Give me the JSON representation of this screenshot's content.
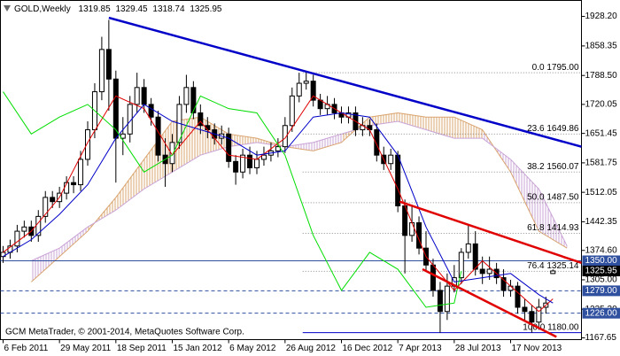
{
  "chart_data": {
    "type": "candlestick",
    "symbol": "GOLD,Weekly",
    "copyright": "GCM MetaTrader, © 2001-2014, MetaQuotes Software Corp.",
    "up_color": "#ffffff",
    "down_color": "#000000",
    "xlim": [
      -0.75,
      164.1
    ],
    "ylim": [
      1163.5,
      1966
    ],
    "xticks": [
      {
        "value": 0,
        "label": "6 Feb 2011"
      },
      {
        "value": 16,
        "label": "29 May 2011"
      },
      {
        "value": 32,
        "label": "18 Sep 2011"
      },
      {
        "value": 48,
        "label": "15 Jan 2012"
      },
      {
        "value": 64,
        "label": "6 May 2012"
      },
      {
        "value": 80,
        "label": "26 Aug 2012"
      },
      {
        "value": 96,
        "label": "16 Dec 2012"
      },
      {
        "value": 112,
        "label": "7 Apr 2013"
      },
      {
        "value": 128,
        "label": "28 Jul 2013"
      },
      {
        "value": 144,
        "label": "17 Nov 2013"
      }
    ],
    "yticks": [
      {
        "value": 1928.2,
        "label": "1928.20"
      },
      1858.35,
      {
        "value": 1788.5,
        "label": "1788.50"
      },
      1720.05,
      1651.45,
      1581.75,
      1512.05,
      1442.35,
      {
        "value": 1374.6,
        "label": "1374.60"
      },
      {
        "value": 1305,
        "label": "1305.00"
      },
      {
        "value": 1235.3,
        "label": "1235.30"
      },
      1167.65
    ],
    "x": [
      0,
      2,
      4,
      6,
      8,
      10,
      12,
      14,
      16,
      18,
      20,
      22,
      24,
      26,
      28,
      30,
      32,
      34,
      36,
      38,
      40,
      42,
      44,
      46,
      48,
      50,
      52,
      54,
      56,
      58,
      60,
      62,
      64,
      66,
      68,
      70,
      72,
      74,
      76,
      78,
      80,
      82,
      84,
      86,
      88,
      90,
      92,
      94,
      96,
      98,
      100,
      102,
      104,
      106,
      108,
      110,
      112,
      114,
      116,
      118,
      120,
      122,
      124,
      126,
      128,
      130,
      132,
      134,
      136,
      138,
      140,
      142,
      144,
      146,
      148,
      150,
      152,
      154,
      156
    ],
    "open": [
      1360,
      1370,
      1385,
      1420,
      1430,
      1410,
      1455,
      1500,
      1490,
      1510,
      1535,
      1530,
      1590,
      1660,
      1750,
      1850,
      1780,
      1640,
      1650,
      1720,
      1760,
      1720,
      1690,
      1600,
      1580,
      1630,
      1720,
      1760,
      1700,
      1670,
      1660,
      1640,
      1650,
      1585,
      1560,
      1600,
      1570,
      1590,
      1600,
      1610,
      1620,
      1670,
      1740,
      1770,
      1775,
      1730,
      1710,
      1720,
      1700,
      1690,
      1700,
      1660,
      1670,
      1660,
      1600,
      1580,
      1600,
      1480,
      1410,
      1440,
      1380,
      1340,
      1280,
      1230,
      1290,
      1310,
      1370,
      1390,
      1330,
      1320,
      1330,
      1310,
      1280,
      1290,
      1240,
      1230,
      1205,
      1240,
      1319.85
    ],
    "high": [
      1385,
      1400,
      1435,
      1445,
      1445,
      1470,
      1515,
      1515,
      1525,
      1550,
      1550,
      1610,
      1680,
      1770,
      1880,
      1920,
      1800,
      1690,
      1740,
      1795,
      1780,
      1735,
      1705,
      1640,
      1650,
      1740,
      1790,
      1775,
      1720,
      1690,
      1675,
      1670,
      1665,
      1600,
      1615,
      1620,
      1610,
      1620,
      1630,
      1640,
      1690,
      1760,
      1795,
      1795,
      1790,
      1745,
      1740,
      1735,
      1715,
      1715,
      1715,
      1690,
      1685,
      1675,
      1620,
      1615,
      1610,
      1495,
      1480,
      1455,
      1420,
      1355,
      1300,
      1320,
      1340,
      1380,
      1433,
      1420,
      1360,
      1360,
      1345,
      1330,
      1305,
      1300,
      1260,
      1245,
      1260,
      1265,
      1329.45
    ],
    "low": [
      1345,
      1355,
      1370,
      1405,
      1395,
      1395,
      1440,
      1475,
      1475,
      1495,
      1510,
      1515,
      1575,
      1640,
      1730,
      1705,
      1535,
      1600,
      1630,
      1700,
      1700,
      1670,
      1585,
      1525,
      1560,
      1615,
      1700,
      1685,
      1650,
      1640,
      1625,
      1625,
      1570,
      1530,
      1545,
      1555,
      1555,
      1575,
      1585,
      1595,
      1605,
      1655,
      1725,
      1755,
      1715,
      1695,
      1695,
      1685,
      1675,
      1675,
      1645,
      1645,
      1645,
      1585,
      1565,
      1565,
      1465,
      1320,
      1395,
      1365,
      1325,
      1265,
      1180,
      1210,
      1275,
      1295,
      1355,
      1315,
      1295,
      1305,
      1295,
      1265,
      1265,
      1225,
      1210,
      1180,
      1190,
      1225,
      1318.74
    ],
    "close": [
      1370,
      1385,
      1420,
      1430,
      1410,
      1455,
      1500,
      1490,
      1510,
      1535,
      1530,
      1590,
      1660,
      1750,
      1850,
      1780,
      1640,
      1650,
      1720,
      1760,
      1720,
      1690,
      1600,
      1580,
      1630,
      1720,
      1760,
      1700,
      1670,
      1660,
      1640,
      1650,
      1585,
      1560,
      1600,
      1570,
      1590,
      1600,
      1610,
      1620,
      1670,
      1740,
      1770,
      1775,
      1730,
      1710,
      1720,
      1700,
      1690,
      1700,
      1660,
      1670,
      1660,
      1600,
      1580,
      1600,
      1480,
      1410,
      1440,
      1380,
      1340,
      1280,
      1230,
      1290,
      1310,
      1370,
      1390,
      1330,
      1320,
      1330,
      1310,
      1280,
      1290,
      1240,
      1230,
      1205,
      1240,
      1250,
      1325.95
    ],
    "lines": [
      {
        "color": "#e00000",
        "x": [
          0,
          8,
          16,
          24,
          32,
          40,
          48,
          56,
          64,
          72,
          80,
          88,
          96,
          104,
          112,
          120,
          128,
          136,
          144,
          152,
          156
        ],
        "values": [
          1370,
          1420,
          1500,
          1630,
          1740,
          1710,
          1600,
          1680,
          1600,
          1590,
          1640,
          1740,
          1700,
          1660,
          1520,
          1360,
          1280,
          1350,
          1290,
          1230,
          1260
        ]
      },
      {
        "color": "#0000c8",
        "x": [
          0,
          8,
          16,
          24,
          32,
          40,
          48,
          56,
          64,
          72,
          80,
          88,
          96,
          104,
          112,
          120,
          128,
          136,
          144,
          152,
          156
        ],
        "values": [
          1360,
          1400,
          1460,
          1530,
          1640,
          1720,
          1680,
          1660,
          1640,
          1600,
          1610,
          1690,
          1700,
          1690,
          1600,
          1430,
          1300,
          1310,
          1320,
          1270,
          1250
        ]
      },
      {
        "color": "#00dd00",
        "x": [
          0,
          8,
          16,
          24,
          32,
          40,
          48,
          56,
          64,
          72,
          80,
          88,
          96,
          104,
          112,
          120,
          128,
          130
        ],
        "values": [
          1750,
          1650,
          1690,
          1720,
          1660,
          1560,
          1600,
          1740,
          1710,
          1700,
          1600,
          1410,
          1280,
          1370,
          1330,
          1240,
          1250,
          1325.95
        ]
      }
    ],
    "cloud": {
      "up_color": "#d9a46e",
      "down_color": "#c9a3d6",
      "x": [
        8,
        16,
        24,
        32,
        40,
        48,
        56,
        64,
        72,
        80,
        88,
        96,
        104,
        112,
        120,
        128,
        136,
        144,
        152,
        160
      ],
      "span_a": [
        1300,
        1360,
        1420,
        1500,
        1590,
        1680,
        1690,
        1650,
        1640,
        1620,
        1610,
        1630,
        1690,
        1700,
        1690,
        1690,
        1660,
        1560,
        1420,
        1380
      ],
      "span_b": [
        1350,
        1380,
        1430,
        1470,
        1520,
        1560,
        1600,
        1620,
        1630,
        1620,
        1630,
        1650,
        1670,
        1680,
        1660,
        1640,
        1640,
        1590,
        1520,
        1385
      ]
    },
    "trendlines": [
      {
        "color": "#0000c8",
        "x": [
          30,
          164.1
        ],
        "values": [
          1925,
          1620
        ]
      },
      {
        "color": "#e00000",
        "x": [
          112.5,
          164.1
        ],
        "values": [
          1490,
          1345
        ]
      },
      {
        "color": "#e00000",
        "x": [
          119,
          157
        ],
        "values": [
          1330,
          1170
        ]
      }
    ],
    "fib": {
      "start": 85,
      "color": "#8c8c8c",
      "base_color": "#0000c8",
      "values": [
        1795,
        1649.86,
        1560.07,
        1487.5,
        1414.93,
        1325.14,
        1180
      ],
      "value_labels": [
        "0.0 1795.00",
        "23.6 1649.86",
        "38.2 1560.07",
        "50.0 1487.50",
        "61.8 1414.93",
        "76.4 1325.14",
        "100.0 1180.00"
      ]
    },
    "levels": {
      "color": "#2f4f9f",
      "values": [
        1350,
        1279,
        1226
      ],
      "value_labels": [
        "1350.00",
        "1279.00",
        "1226.00"
      ]
    }
  }
}
